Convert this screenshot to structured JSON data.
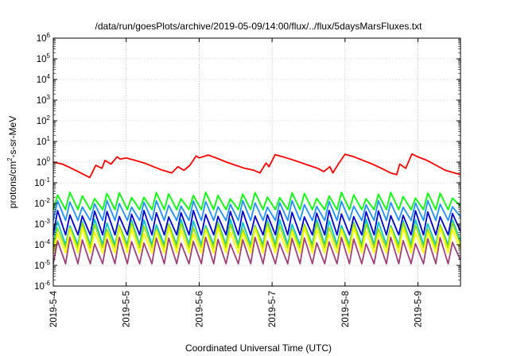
{
  "chart_data": {
    "type": "line",
    "title": "/data/run/goesPlots/archive/2019-05-09/14:00/flux/../flux/5daysMarsFluxes.txt",
    "xlabel": "Coordinated Universal Time (UTC)",
    "ylabel": "protons/cm²-s-sr-MeV",
    "ylabel_parts": {
      "pre": "protons/cm",
      "sup": "2",
      "post": "-s-sr-MeV"
    },
    "y_scale": "log",
    "ylim": [
      1e-06,
      1000000.0
    ],
    "y_ticks": [
      {
        "base": "10",
        "exp": "-6",
        "value": 1e-06
      },
      {
        "base": "10",
        "exp": "-5",
        "value": 1e-05
      },
      {
        "base": "10",
        "exp": "-4",
        "value": 0.0001
      },
      {
        "base": "10",
        "exp": "-3",
        "value": 0.001
      },
      {
        "base": "10",
        "exp": "-2",
        "value": 0.01
      },
      {
        "base": "10",
        "exp": "-1",
        "value": 0.1
      },
      {
        "base": "10",
        "exp": "0",
        "value": 1
      },
      {
        "base": "10",
        "exp": "1",
        "value": 10
      },
      {
        "base": "10",
        "exp": "2",
        "value": 100
      },
      {
        "base": "10",
        "exp": "3",
        "value": 1000
      },
      {
        "base": "10",
        "exp": "4",
        "value": 10000
      },
      {
        "base": "10",
        "exp": "5",
        "value": 100000
      },
      {
        "base": "10",
        "exp": "6",
        "value": 1000000
      }
    ],
    "xlim": [
      "2019-05-04",
      "2019-05-09T14:00"
    ],
    "x_ticks": [
      {
        "label": "2019-5-4",
        "value": "2019-05-04"
      },
      {
        "label": "2019-5-5",
        "value": "2019-05-05"
      },
      {
        "label": "2019-5-6",
        "value": "2019-05-06"
      },
      {
        "label": "2019-5-7",
        "value": "2019-05-07"
      },
      {
        "label": "2019-5-8",
        "value": "2019-05-08"
      },
      {
        "label": "2019-5-9",
        "value": "2019-05-09"
      }
    ],
    "grid": true,
    "series": [
      {
        "color": "#ff0000",
        "x": [
          "2019-05-04T00:00",
          "2019-05-04T03:00",
          "2019-05-04T06:00",
          "2019-05-04T09:00",
          "2019-05-04T12:00",
          "2019-05-04T14:00",
          "2019-05-04T16:00",
          "2019-05-04T17:00",
          "2019-05-04T19:00",
          "2019-05-04T21:00",
          "2019-05-04T22:00",
          "2019-05-05T00:00",
          "2019-05-05T03:00",
          "2019-05-05T06:00",
          "2019-05-05T09:00",
          "2019-05-05T12:00",
          "2019-05-05T15:00",
          "2019-05-05T17:00",
          "2019-05-05T19:00",
          "2019-05-05T21:00",
          "2019-05-05T23:00",
          "2019-05-06T00:00",
          "2019-05-06T03:00",
          "2019-05-06T06:00",
          "2019-05-06T09:00",
          "2019-05-06T12:00",
          "2019-05-06T15:00",
          "2019-05-06T18:00",
          "2019-05-06T20:00",
          "2019-05-06T22:00",
          "2019-05-06T23:00",
          "2019-05-07T01:00",
          "2019-05-07T03:00",
          "2019-05-07T06:00",
          "2019-05-07T09:00",
          "2019-05-07T12:00",
          "2019-05-07T15:00",
          "2019-05-07T17:00",
          "2019-05-07T19:00",
          "2019-05-07T20:00",
          "2019-05-07T22:00",
          "2019-05-08T00:00",
          "2019-05-08T03:00",
          "2019-05-08T06:00",
          "2019-05-08T09:00",
          "2019-05-08T12:00",
          "2019-05-08T15:00",
          "2019-05-08T17:00",
          "2019-05-08T18:00",
          "2019-05-08T20:00",
          "2019-05-08T22:00",
          "2019-05-09T00:00",
          "2019-05-09T03:00",
          "2019-05-09T06:00",
          "2019-05-09T09:00",
          "2019-05-09T12:00",
          "2019-05-09T14:00"
        ],
        "y": [
          1.0,
          0.8,
          0.5,
          0.3,
          0.18,
          0.7,
          0.5,
          1.2,
          0.8,
          1.8,
          1.4,
          1.6,
          1.2,
          0.9,
          0.6,
          0.4,
          0.3,
          0.6,
          0.4,
          0.7,
          2.0,
          1.6,
          2.2,
          1.5,
          1.0,
          0.7,
          0.5,
          0.4,
          0.3,
          0.9,
          0.6,
          2.3,
          1.9,
          1.4,
          1.0,
          0.7,
          0.5,
          0.35,
          0.6,
          0.3,
          0.9,
          2.4,
          1.8,
          1.2,
          0.8,
          0.5,
          0.3,
          0.25,
          0.8,
          0.5,
          2.5,
          1.8,
          1.2,
          0.7,
          0.4,
          0.3,
          0.25
        ]
      },
      {
        "color": "#00ff00",
        "sawtooth": {
          "peak": 0.03,
          "trough": 0.005,
          "cycles": 33
        }
      },
      {
        "color": "#1e90ff",
        "sawtooth": {
          "peak": 0.012,
          "trough": 0.0015,
          "cycles": 33
        }
      },
      {
        "color": "#0000cd",
        "sawtooth": {
          "peak": 0.004,
          "trough": 0.0003,
          "cycles": 33
        }
      },
      {
        "color": "#00c8c8",
        "sawtooth": {
          "peak": 0.0015,
          "trough": 0.0001,
          "cycles": 33
        }
      },
      {
        "color": "#a0e000",
        "sawtooth": {
          "peak": 0.001,
          "trough": 7e-05,
          "cycles": 33
        }
      },
      {
        "color": "#ffff00",
        "sawtooth": {
          "peak": 0.0006,
          "trough": 4e-05,
          "cycles": 33
        }
      },
      {
        "color": "#a0407a",
        "sawtooth": {
          "peak": 0.0002,
          "trough": 1.2e-05,
          "cycles": 33
        }
      }
    ]
  }
}
